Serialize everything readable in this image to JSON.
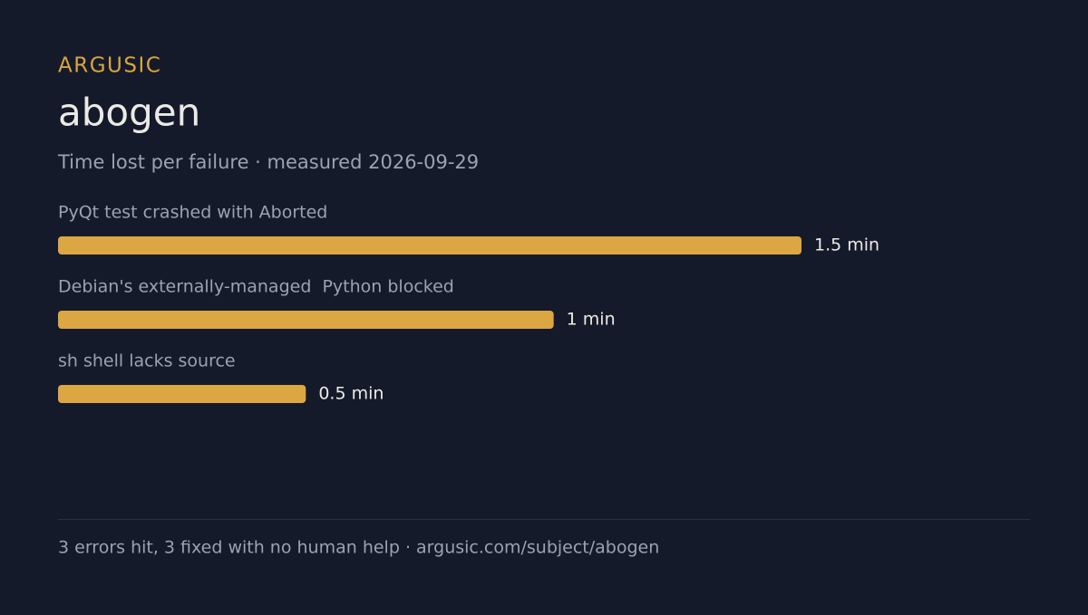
{
  "brand": "ARGUSIC",
  "chart_data": {
    "type": "bar",
    "orientation": "horizontal",
    "title": "abogen",
    "subtitle": "Time lost per failure · measured 2026-09-29",
    "categories": [
      "PyQt test crashed with Aborted",
      "Debian's externally-managed  Python blocked",
      "sh shell lacks source"
    ],
    "values": [
      1.5,
      1,
      0.5
    ],
    "value_labels": [
      "1.5 min",
      "1 min",
      "0.5 min"
    ],
    "color": "#dca642"
  },
  "footer": "3 errors hit, 3 fixed with no human help · argusic.com/subject/abogen"
}
